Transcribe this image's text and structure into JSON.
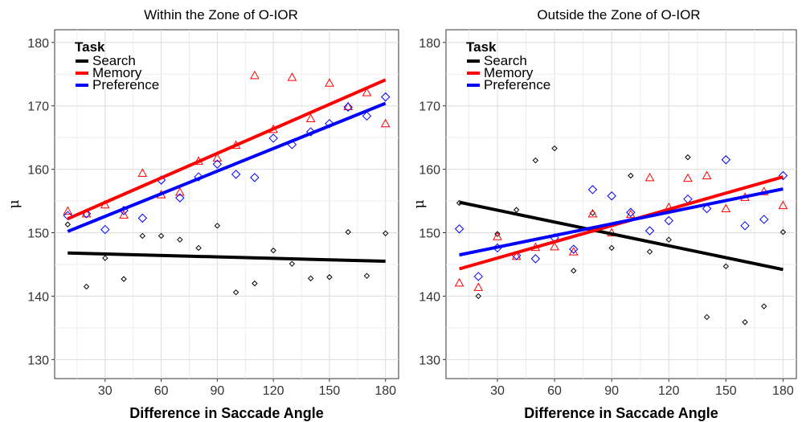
{
  "chart_data": [
    {
      "type": "scatter",
      "title": "Within the Zone of O-IOR",
      "xlabel": "Difference in Saccade Angle",
      "ylabel": "μ",
      "xlim": [
        3,
        187
      ],
      "ylim": [
        127,
        182
      ],
      "xticks": [
        30,
        60,
        90,
        120,
        150,
        180
      ],
      "yticks": [
        130,
        140,
        150,
        160,
        170,
        180
      ],
      "grid": true,
      "legend": {
        "title": "Task",
        "position": "top-left"
      },
      "series": [
        {
          "name": "Search",
          "color": "#000000",
          "marker": "diamond",
          "points": [
            [
              10,
              151.3
            ],
            [
              20,
              141.5
            ],
            [
              30,
              146
            ],
            [
              40,
              142.7
            ],
            [
              50,
              149.5
            ],
            [
              60,
              149.5
            ],
            [
              70,
              148.9
            ],
            [
              80,
              147.6
            ],
            [
              90,
              151.1
            ],
            [
              100,
              140.6
            ],
            [
              110,
              142
            ],
            [
              120,
              147.2
            ],
            [
              130,
              145.1
            ],
            [
              140,
              142.8
            ],
            [
              150,
              143
            ],
            [
              160,
              150.1
            ],
            [
              170,
              143.2
            ],
            [
              180,
              149.9
            ]
          ],
          "fit": [
            [
              10,
              146.8
            ],
            [
              180,
              145.5
            ]
          ]
        },
        {
          "name": "Memory",
          "color": "#ff0000",
          "marker": "triangle",
          "points": [
            [
              10,
              153.4
            ],
            [
              20,
              153
            ],
            [
              30,
              154.4
            ],
            [
              40,
              152.8
            ],
            [
              50,
              159.4
            ],
            [
              60,
              156
            ],
            [
              70,
              156.4
            ],
            [
              80,
              161.3
            ],
            [
              90,
              161.8
            ],
            [
              100,
              163.8
            ],
            [
              110,
              174.8
            ],
            [
              120,
              166.3
            ],
            [
              130,
              174.5
            ],
            [
              140,
              168
            ],
            [
              150,
              173.6
            ],
            [
              160,
              169.9
            ],
            [
              170,
              172.1
            ],
            [
              180,
              167.2
            ]
          ],
          "fit": [
            [
              10,
              152.2
            ],
            [
              180,
              174.1
            ]
          ]
        },
        {
          "name": "Preference",
          "color": "#0000ff",
          "marker": "diamond",
          "points": [
            [
              10,
              152.7
            ],
            [
              20,
              153
            ],
            [
              30,
              150.5
            ],
            [
              40,
              153.5
            ],
            [
              50,
              152.3
            ],
            [
              60,
              158.3
            ],
            [
              70,
              155.5
            ],
            [
              80,
              158.8
            ],
            [
              90,
              160.8
            ],
            [
              100,
              159.2
            ],
            [
              110,
              158.7
            ],
            [
              120,
              164.9
            ],
            [
              130,
              163.9
            ],
            [
              140,
              165.9
            ],
            [
              150,
              167.2
            ],
            [
              160,
              169.8
            ],
            [
              170,
              168.4
            ],
            [
              180,
              171.4
            ]
          ],
          "fit": [
            [
              10,
              150.2
            ],
            [
              180,
              170.4
            ]
          ]
        }
      ]
    },
    {
      "type": "scatter",
      "title": "Outside the Zone of O-IOR",
      "xlabel": "Difference in Saccade Angle",
      "ylabel": "μ",
      "xlim": [
        3,
        187
      ],
      "ylim": [
        127,
        182
      ],
      "xticks": [
        30,
        60,
        90,
        120,
        150,
        180
      ],
      "yticks": [
        130,
        140,
        150,
        160,
        170,
        180
      ],
      "grid": true,
      "legend": {
        "title": "Task",
        "position": "top-left"
      },
      "series": [
        {
          "name": "Search",
          "color": "#000000",
          "marker": "diamond",
          "points": [
            [
              10,
              154.7
            ],
            [
              20,
              140
            ],
            [
              30,
              149.8
            ],
            [
              40,
              153.6
            ],
            [
              50,
              161.4
            ],
            [
              60,
              163.3
            ],
            [
              70,
              144
            ],
            [
              80,
              153.1
            ],
            [
              90,
              147.6
            ],
            [
              100,
              159
            ],
            [
              110,
              147
            ],
            [
              120,
              148.9
            ],
            [
              130,
              161.9
            ],
            [
              140,
              136.7
            ],
            [
              150,
              144.7
            ],
            [
              160,
              135.9
            ],
            [
              170,
              138.4
            ],
            [
              180,
              150.1
            ]
          ],
          "fit": [
            [
              10,
              154.8
            ],
            [
              180,
              144.2
            ]
          ]
        },
        {
          "name": "Memory",
          "color": "#ff0000",
          "marker": "triangle",
          "points": [
            [
              10,
              142.1
            ],
            [
              20,
              141.4
            ],
            [
              30,
              149.4
            ],
            [
              40,
              146.3
            ],
            [
              50,
              147.7
            ],
            [
              60,
              147.8
            ],
            [
              70,
              147
            ],
            [
              80,
              153
            ],
            [
              90,
              150
            ],
            [
              100,
              152.9
            ],
            [
              110,
              158.7
            ],
            [
              120,
              154
            ],
            [
              130,
              158.6
            ],
            [
              140,
              159
            ],
            [
              150,
              153.8
            ],
            [
              160,
              155.6
            ],
            [
              170,
              156.5
            ],
            [
              180,
              154.3
            ]
          ],
          "fit": [
            [
              10,
              144.3
            ],
            [
              180,
              158.8
            ]
          ]
        },
        {
          "name": "Preference",
          "color": "#0000ff",
          "marker": "diamond",
          "points": [
            [
              10,
              150.6
            ],
            [
              20,
              143.1
            ],
            [
              30,
              147.6
            ],
            [
              40,
              146.4
            ],
            [
              50,
              145.9
            ],
            [
              60,
              149.2
            ],
            [
              70,
              147.4
            ],
            [
              80,
              156.8
            ],
            [
              90,
              155.8
            ],
            [
              100,
              153.2
            ],
            [
              110,
              150.3
            ],
            [
              120,
              151.9
            ],
            [
              130,
              155.3
            ],
            [
              140,
              153.8
            ],
            [
              150,
              161.5
            ],
            [
              160,
              151.1
            ],
            [
              170,
              152.1
            ],
            [
              180,
              159
            ]
          ],
          "fit": [
            [
              10,
              146.5
            ],
            [
              180,
              156.9
            ]
          ]
        }
      ]
    }
  ]
}
